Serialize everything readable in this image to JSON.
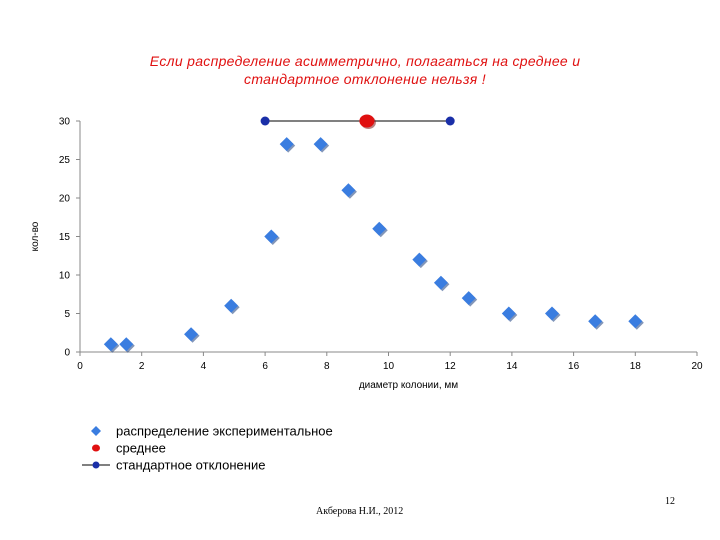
{
  "slide": {
    "title_line1": "Если распределение асимметрично, полагаться на среднее и",
    "title_line2": "стандартное отклонение нельзя !",
    "author": "Акберова Н.И., 2012",
    "page_number": "12"
  },
  "chart_data": {
    "type": "scatter",
    "xlabel": "диаметр колонии, мм",
    "ylabel": "кол-во",
    "xlim": [
      0,
      20
    ],
    "ylim": [
      0,
      30
    ],
    "x_ticks": [
      "0",
      "2",
      "4",
      "6",
      "8",
      "10",
      "12",
      "14",
      "16",
      "18",
      "20"
    ],
    "y_ticks": [
      "0",
      "5",
      "10",
      "15",
      "20",
      "25",
      "30"
    ],
    "grid": false,
    "legend_position": "bottom-left",
    "series": [
      {
        "name": "распределение экспериментальное",
        "marker": "diamond",
        "color": "#3a7de0",
        "points": [
          [
            1,
            1
          ],
          [
            1.5,
            1
          ],
          [
            3.6,
            2.3
          ],
          [
            4.9,
            6
          ],
          [
            6.2,
            15
          ],
          [
            6.7,
            27
          ],
          [
            7.8,
            27
          ],
          [
            8.7,
            21
          ],
          [
            9.7,
            16
          ],
          [
            11,
            12
          ],
          [
            11.7,
            9
          ],
          [
            12.6,
            7
          ],
          [
            13.9,
            5
          ],
          [
            15.3,
            5
          ],
          [
            16.7,
            4
          ],
          [
            18,
            4
          ]
        ]
      },
      {
        "name": "среднее",
        "marker": "circle",
        "color": "#e01010",
        "points": [
          [
            9.3,
            30
          ]
        ]
      },
      {
        "name": "стандартное отклонение",
        "marker": "line-dot",
        "color": "#1a2fa8",
        "points": [
          [
            6,
            30
          ],
          [
            12,
            30
          ]
        ]
      }
    ]
  }
}
